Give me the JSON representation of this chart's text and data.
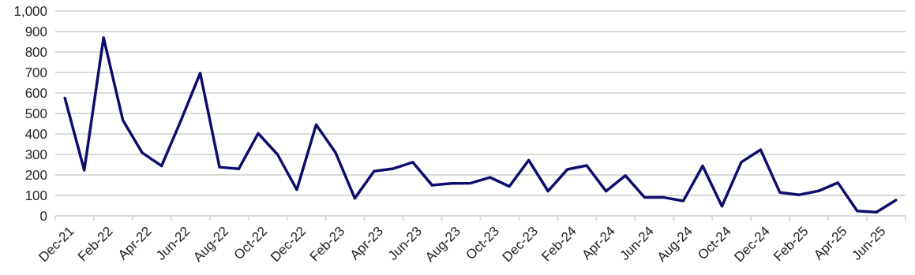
{
  "chart_data": {
    "type": "line",
    "categories": [
      "Dec-21",
      null,
      "Feb-22",
      null,
      "Apr-22",
      null,
      "Jun-22",
      null,
      "Aug-22",
      null,
      "Oct-22",
      null,
      "Dec-22",
      null,
      "Feb-23",
      null,
      "Apr-23",
      null,
      "Jun-23",
      null,
      "Aug-23",
      null,
      "Oct-23",
      null,
      "Dec-23",
      null,
      "Feb-24",
      null,
      "Apr-24",
      null,
      "Jun-24",
      null,
      "Aug-24",
      null,
      "Oct-24",
      null,
      "Dec-24",
      null,
      "Feb-25",
      null,
      "Apr-25",
      null,
      "Jun-25",
      null
    ],
    "series": [
      {
        "color": "#0d0d6b",
        "values": [
          575,
          223,
          870,
          467,
          308,
          244,
          465,
          697,
          238,
          230,
          403,
          300,
          128,
          445,
          310,
          86,
          218,
          231,
          262,
          150,
          159,
          160,
          188,
          144,
          272,
          121,
          227,
          246,
          121,
          197,
          90,
          90,
          73,
          244,
          47,
          262,
          323,
          114,
          103,
          122,
          162,
          24,
          18,
          77
        ]
      }
    ],
    "ylim": [
      0,
      1000
    ],
    "yticks": [
      0,
      100,
      200,
      300,
      400,
      500,
      600,
      700,
      800,
      900,
      {
        "value": 1000,
        "label": "1,000"
      }
    ],
    "grid": "y",
    "line_style": "solid",
    "marker": "none"
  }
}
